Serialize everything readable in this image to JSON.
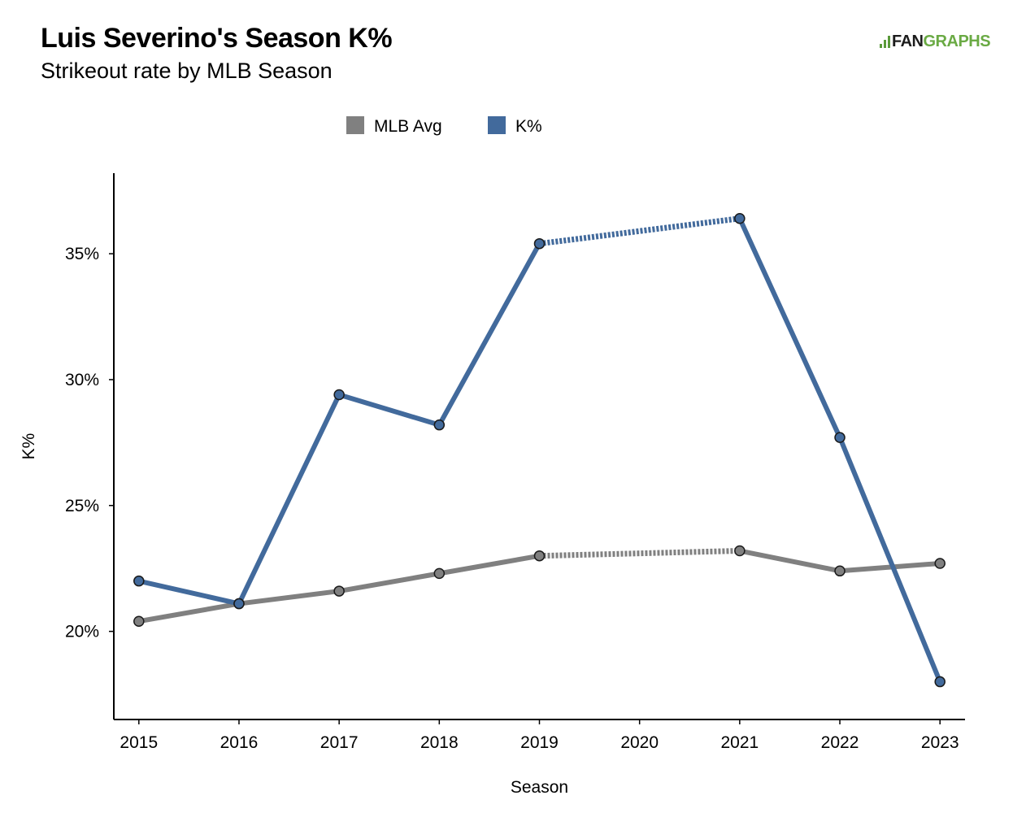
{
  "header": {
    "title": "Luis Severino's Season K%",
    "subtitle": "Strikeout rate by MLB Season",
    "logo_prefix": "FAN",
    "logo_suffix": "GRAPHS"
  },
  "chart_data": {
    "type": "line",
    "title": "Luis Severino's Season K%",
    "subtitle": "Strikeout rate by MLB Season",
    "xlabel": "Season",
    "ylabel": "K%",
    "x": [
      2015,
      2016,
      2017,
      2018,
      2019,
      2020,
      2021,
      2022,
      2023
    ],
    "x_tick_labels": [
      "2015",
      "2016",
      "2017",
      "2018",
      "2019",
      "2020",
      "2021",
      "2022",
      "2023"
    ],
    "y_ticks": [
      20,
      25,
      30,
      35
    ],
    "y_tick_labels": [
      "20%",
      "25%",
      "30%",
      "35%"
    ],
    "xlim": [
      2014.75,
      2023.25
    ],
    "ylim": [
      16.5,
      38.2
    ],
    "grid": false,
    "legend_position": "top-center",
    "series": [
      {
        "name": "MLB Avg",
        "color": "#808080",
        "points": [
          {
            "x": 2015,
            "y": 20.4
          },
          {
            "x": 2016,
            "y": 21.1
          },
          {
            "x": 2017,
            "y": 21.6
          },
          {
            "x": 2018,
            "y": 22.3
          },
          {
            "x": 2019,
            "y": 23.0
          },
          {
            "x": 2021,
            "y": 23.2
          },
          {
            "x": 2022,
            "y": 22.4
          },
          {
            "x": 2023,
            "y": 22.7
          }
        ],
        "dashed_gaps": [
          [
            2019,
            2021
          ]
        ]
      },
      {
        "name": "K%",
        "color": "#426a9c",
        "points": [
          {
            "x": 2015,
            "y": 22.0
          },
          {
            "x": 2016,
            "y": 21.1
          },
          {
            "x": 2017,
            "y": 29.4
          },
          {
            "x": 2018,
            "y": 28.2
          },
          {
            "x": 2019,
            "y": 35.4
          },
          {
            "x": 2021,
            "y": 36.4
          },
          {
            "x": 2022,
            "y": 27.7
          },
          {
            "x": 2023,
            "y": 18.0
          }
        ],
        "dashed_gaps": [
          [
            2019,
            2021
          ]
        ]
      }
    ]
  }
}
